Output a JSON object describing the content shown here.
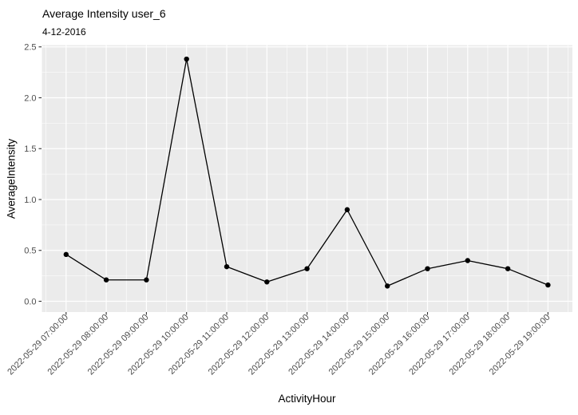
{
  "chart_data": {
    "type": "line",
    "title": "Average Intensity user_6",
    "subtitle": "4-12-2016",
    "xlabel": "ActivityHour",
    "ylabel": "AverageIntensity",
    "x": [
      "2022-05-29 07:00:00",
      "2022-05-29 08:00:00",
      "2022-05-29 09:00:00",
      "2022-05-29 10:00:00",
      "2022-05-29 11:00:00",
      "2022-05-29 12:00:00",
      "2022-05-29 13:00:00",
      "2022-05-29 14:00:00",
      "2022-05-29 15:00:00",
      "2022-05-29 16:00:00",
      "2022-05-29 17:00:00",
      "2022-05-29 18:00:00",
      "2022-05-29 19:00:00"
    ],
    "values": [
      0.46,
      0.21,
      0.21,
      2.38,
      0.34,
      0.19,
      0.32,
      0.9,
      0.15,
      0.32,
      0.4,
      0.32,
      0.16
    ],
    "ylim": [
      0.0,
      2.5
    ],
    "yticks": [
      0.0,
      0.5,
      1.0,
      1.5,
      2.0,
      2.5
    ],
    "grid": "major-and-minor",
    "legend": "none",
    "x_tick_rotation_degrees": 45,
    "style": {
      "background": "#FFFFFF",
      "panel_bg": "#EBEBEB",
      "grid_color": "#FFFFFF",
      "line_color": "#000000",
      "point_color": "#000000",
      "tick_mark_color": "#333333",
      "tick_label_color": "#4D4D4D",
      "text_color": "#000000"
    }
  }
}
